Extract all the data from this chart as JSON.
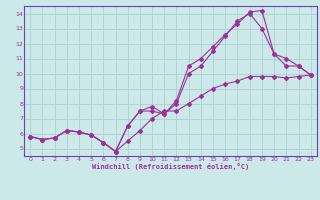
{
  "bg_color": "#cde8e8",
  "grid_color": "#b0d4d4",
  "line_color": "#993399",
  "spine_color": "#6644aa",
  "xlabel": "Windchill (Refroidissement éolien,°C)",
  "xlim": [
    -0.5,
    23.5
  ],
  "ylim": [
    4.5,
    14.5
  ],
  "xticks": [
    0,
    1,
    2,
    3,
    4,
    5,
    6,
    7,
    8,
    9,
    10,
    11,
    12,
    13,
    14,
    15,
    16,
    17,
    18,
    19,
    20,
    21,
    22,
    23
  ],
  "yticks": [
    5,
    6,
    7,
    8,
    9,
    10,
    11,
    12,
    13,
    14
  ],
  "line1": {
    "x": [
      0,
      1,
      2,
      3,
      4,
      5,
      6,
      7,
      8,
      9,
      10,
      11,
      12,
      13,
      14,
      15,
      16,
      17,
      18,
      19,
      20,
      21,
      22,
      23
    ],
    "y": [
      5.8,
      5.6,
      5.7,
      6.2,
      6.1,
      5.9,
      5.4,
      4.8,
      5.5,
      6.2,
      7.0,
      7.5,
      7.5,
      8.0,
      8.5,
      9.0,
      9.3,
      9.5,
      9.8,
      9.8,
      9.8,
      9.7,
      9.8,
      9.9
    ]
  },
  "line2": {
    "x": [
      0,
      1,
      2,
      3,
      4,
      5,
      6,
      7,
      8,
      9,
      10,
      11,
      12,
      13,
      14,
      15,
      16,
      17,
      18,
      19,
      20,
      21,
      22,
      23
    ],
    "y": [
      5.8,
      5.6,
      5.7,
      6.2,
      6.1,
      5.9,
      5.4,
      4.8,
      6.5,
      7.5,
      7.5,
      7.3,
      8.0,
      10.0,
      10.5,
      11.5,
      12.5,
      13.5,
      14.0,
      13.0,
      11.3,
      10.5,
      10.5,
      9.9
    ]
  },
  "line3": {
    "x": [
      0,
      1,
      2,
      3,
      4,
      5,
      6,
      7,
      8,
      9,
      10,
      11,
      12,
      13,
      14,
      15,
      16,
      17,
      18,
      19,
      20,
      21,
      22,
      23
    ],
    "y": [
      5.8,
      5.6,
      5.7,
      6.2,
      6.1,
      5.9,
      5.4,
      4.8,
      6.5,
      7.5,
      7.8,
      7.3,
      8.2,
      10.5,
      11.0,
      11.8,
      12.6,
      13.3,
      14.1,
      14.2,
      11.3,
      11.0,
      10.5,
      9.9
    ]
  }
}
